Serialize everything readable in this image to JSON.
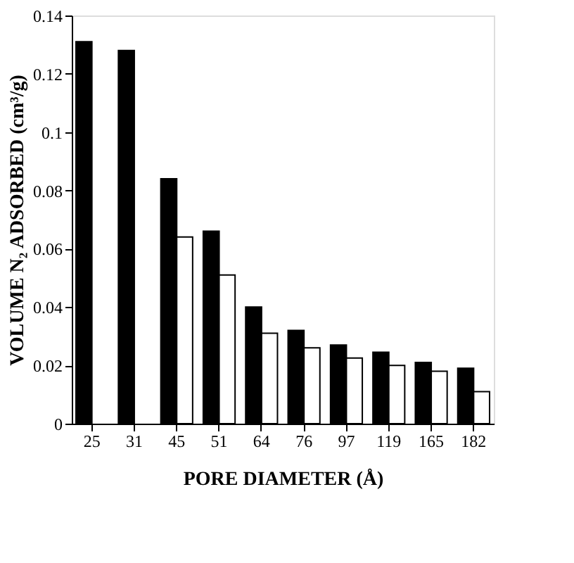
{
  "chart_data": {
    "type": "bar",
    "xlabel": "PORE DIAMETER (Å)",
    "ylabel": "VOLUME N₂ ADSORBED (cm³/g)",
    "categories": [
      "25",
      "31",
      "45",
      "51",
      "64",
      "76",
      "97",
      "119",
      "165",
      "182"
    ],
    "series": [
      {
        "color": "#000000",
        "values": [
          0.131,
          0.128,
          0.084,
          0.066,
          0.04,
          0.032,
          0.027,
          0.0245,
          0.021,
          0.019
        ]
      },
      {
        "color": "#ffffff",
        "values": [
          null,
          null,
          0.064,
          0.051,
          0.031,
          0.026,
          0.0225,
          0.02,
          0.018,
          0.011
        ]
      }
    ],
    "ylim": [
      0,
      0.14
    ],
    "yticks": [
      0,
      0.02,
      0.04,
      0.06,
      0.08,
      0.1,
      0.12,
      0.14
    ],
    "grid": false
  }
}
